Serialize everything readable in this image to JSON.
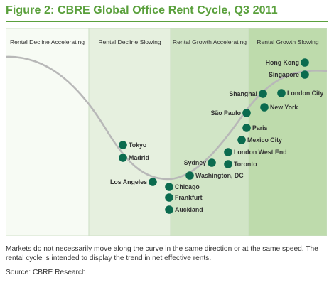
{
  "title": "Figure 2: CBRE Global Office Rent Cycle, Q3 2011",
  "colors": {
    "title": "#5aa03c",
    "dot": "#0b6b4f",
    "curve": "#b8b8b8",
    "text": "#333333",
    "zone_border": "#c8dcc0",
    "zones": [
      "#f7fbf4",
      "#e6f0df",
      "#d1e5c6",
      "#bedbac"
    ]
  },
  "zones": [
    "Rental Decline Accelerating",
    "Rental Decline Slowing",
    "Rental Growth Accelerating",
    "Rental Growth Slowing"
  ],
  "markets": [
    "Hong Kong",
    "Singapore",
    "Shanghai",
    "London City",
    "New York",
    "São Paulo",
    "Paris",
    "Mexico City",
    "London West End",
    "Sydney",
    "Toronto",
    "Washington, DC",
    "Tokyo",
    "Madrid",
    "Los Angeles",
    "Chicago",
    "Frankfurt",
    "Auckland"
  ],
  "caption": "Markets do not necessarily move along the curve in the same direction or at the same speed. The rental cycle is intended to display the trend in net effective rents.",
  "source": "Source: CBRE Research"
}
